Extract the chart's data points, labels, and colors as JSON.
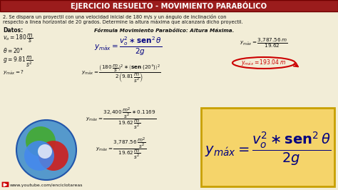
{
  "title": "EJERCICIO RESUELTO - MOVIMIENTO PARABÓLICO",
  "title_bg": "#9B1C1C",
  "title_border": "#700000",
  "title_color": "#FFFFFF",
  "bg_color": "#F2EDD7",
  "problem_line1": "2. Se dispara un proyectil con una velocidad inicial de 180 m/s y un ángulo de inclinación con",
  "problem_line2": "respecto a linea horizontal de 20 grados. Determine la altura máxima que alcanzará dicho proyectil.",
  "datos_label": "Datos:",
  "formula_title": "Fórmula Movimiento Parabólico: Altura Máxima.",
  "formula_box_color": "#F5D46A",
  "formula_box_border": "#C8A000",
  "result_color": "#CC0000",
  "dark_blue": "#000080",
  "text_color": "#111111",
  "url": "www.youtube.com/enciclotareas",
  "circle_blue_outer": "#5599CC",
  "circle_blue_inner": "#4488EE",
  "circle_green": "#44AA33",
  "circle_red": "#CC2222"
}
